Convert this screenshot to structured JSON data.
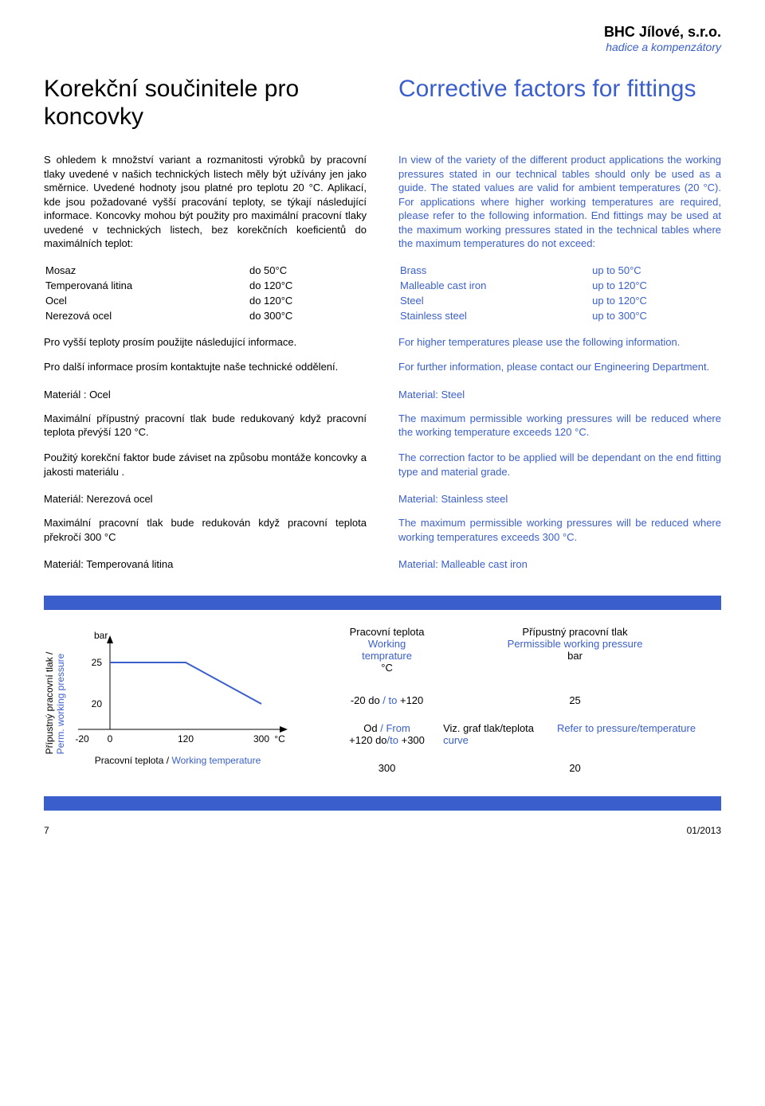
{
  "header": {
    "company": "BHC Jílové, s.r.o.",
    "subtitle": "hadice a kompenzátory"
  },
  "title_cz": "Korekční součinitele pro koncovky",
  "title_en": "Corrective factors for fittings",
  "intro_cz": "S ohledem k množství variant a rozmanitosti výrobků by pracovní tlaky uvedené v našich technických listech měly být užívány jen jako směrnice. Uvedené hodnoty jsou platné pro teplotu 20 °C. Aplikací, kde jsou požadované vyšší pracování teploty, se týkají následující informace. Koncovky mohou být použity pro maximální pracovní tlaky uvedené v technických listech, bez korekčních koeficientů do maximálních teplot:",
  "intro_en": "In view of the variety of the different product applications the working pressures stated in our technical tables should only be used as a guide. The stated values are valid for ambient temperatures (20 °C). For applications where higher working temperatures are required, please refer to the following information. End fittings may be used at the maximum working pressures stated in the technical tables where the maximum temperatures do not exceed:",
  "materials_cz": [
    {
      "name": "Mosaz",
      "limit": "do  50°C"
    },
    {
      "name": "Temperovaná litina",
      "limit": "do 120°C"
    },
    {
      "name": "Ocel",
      "limit": "do 120°C"
    },
    {
      "name": "Nerezová ocel",
      "limit": "do 300°C"
    }
  ],
  "materials_en": [
    {
      "name": "Brass",
      "limit": "up to  50°C"
    },
    {
      "name": "Malleable cast iron",
      "limit": "up to  120°C"
    },
    {
      "name": "Steel",
      "limit": "up to  120°C"
    },
    {
      "name": "Stainless steel",
      "limit": "up to  300°C"
    }
  ],
  "higher_cz": "Pro vyšší teploty prosím použijte následující informace.",
  "higher_en": "For higher temperatures please use the following information.",
  "further_cz": "Pro další informace prosím kontaktujte naše technické oddělení.",
  "further_en": "For further information, please contact our Engineering Department.",
  "mat_steel_cz": "Materiál : Ocel",
  "mat_steel_en": "Material: Steel",
  "steel_p1_cz": "Maximální přípustný pracovní tlak bude redukovaný když pracovní teplota převýší 120 °C.",
  "steel_p1_en": "The maximum permissible working pressures will be reduced where the working temperature exceeds 120 °C.",
  "steel_p2_cz": "Použitý korekční faktor bude záviset na způsobu montáže koncovky a jakosti materiálu .",
  "steel_p2_en": "The correction factor to be applied will be dependant on the end fitting type and material grade.",
  "mat_ss_cz": "Materiál: Nerezová ocel",
  "mat_ss_en": "Material: Stainless steel",
  "ss_p_cz": "Maximální pracovní tlak bude redukován když pracovní teplota překročí 300 °C",
  "ss_p_en": "The maximum permissible working pressures will be reduced where working temperatures exceeds 300 °C.",
  "mat_mall_cz": "Materiál: Temperovaná litina",
  "mat_mall_en": "Material: Malleable cast iron",
  "chart": {
    "type": "line",
    "y_unit": "bar",
    "y_ticks": [
      20,
      25
    ],
    "x_ticks": [
      "-20",
      "0",
      "120",
      "300",
      "°C"
    ],
    "x_positions": [
      20,
      55,
      150,
      245,
      268
    ],
    "points": [
      {
        "x": 55,
        "y": 25
      },
      {
        "x": 150,
        "y": 25
      },
      {
        "x": 245,
        "y": 20
      }
    ],
    "axis_color": "#000000",
    "line_color": "#3a5fcd",
    "line_width": 2,
    "y_label_cz": "Přípustný pracovní tlak  /",
    "y_label_en": "Perm. working pressure",
    "x_label_cz": "Pracovní teplota / ",
    "x_label_en": "Working temperature"
  },
  "table_head": {
    "c1_cz": "Pracovní teplota",
    "c1_en": "Working temprature",
    "c1_unit": "°C",
    "c2_cz": "Přípustný pracovní tlak",
    "c2_en": "Permissible working pressure",
    "c2_unit": "bar"
  },
  "table_rows": [
    {
      "t": "-20 do / to +120",
      "p": "25",
      "p_en": ""
    },
    {
      "t_cz": "Od / ",
      "t_en": "From",
      "t2": "+120 do/to +300",
      "p_cz": "Viz. graf tlak/teplota",
      "p_en": "Refer to pressure/temperature curve"
    },
    {
      "t": "300",
      "p": "20"
    }
  ],
  "footer": {
    "page": "7",
    "date": "01/2013"
  },
  "colors": {
    "accent": "#3a5fcd",
    "text": "#000000",
    "background": "#ffffff"
  }
}
